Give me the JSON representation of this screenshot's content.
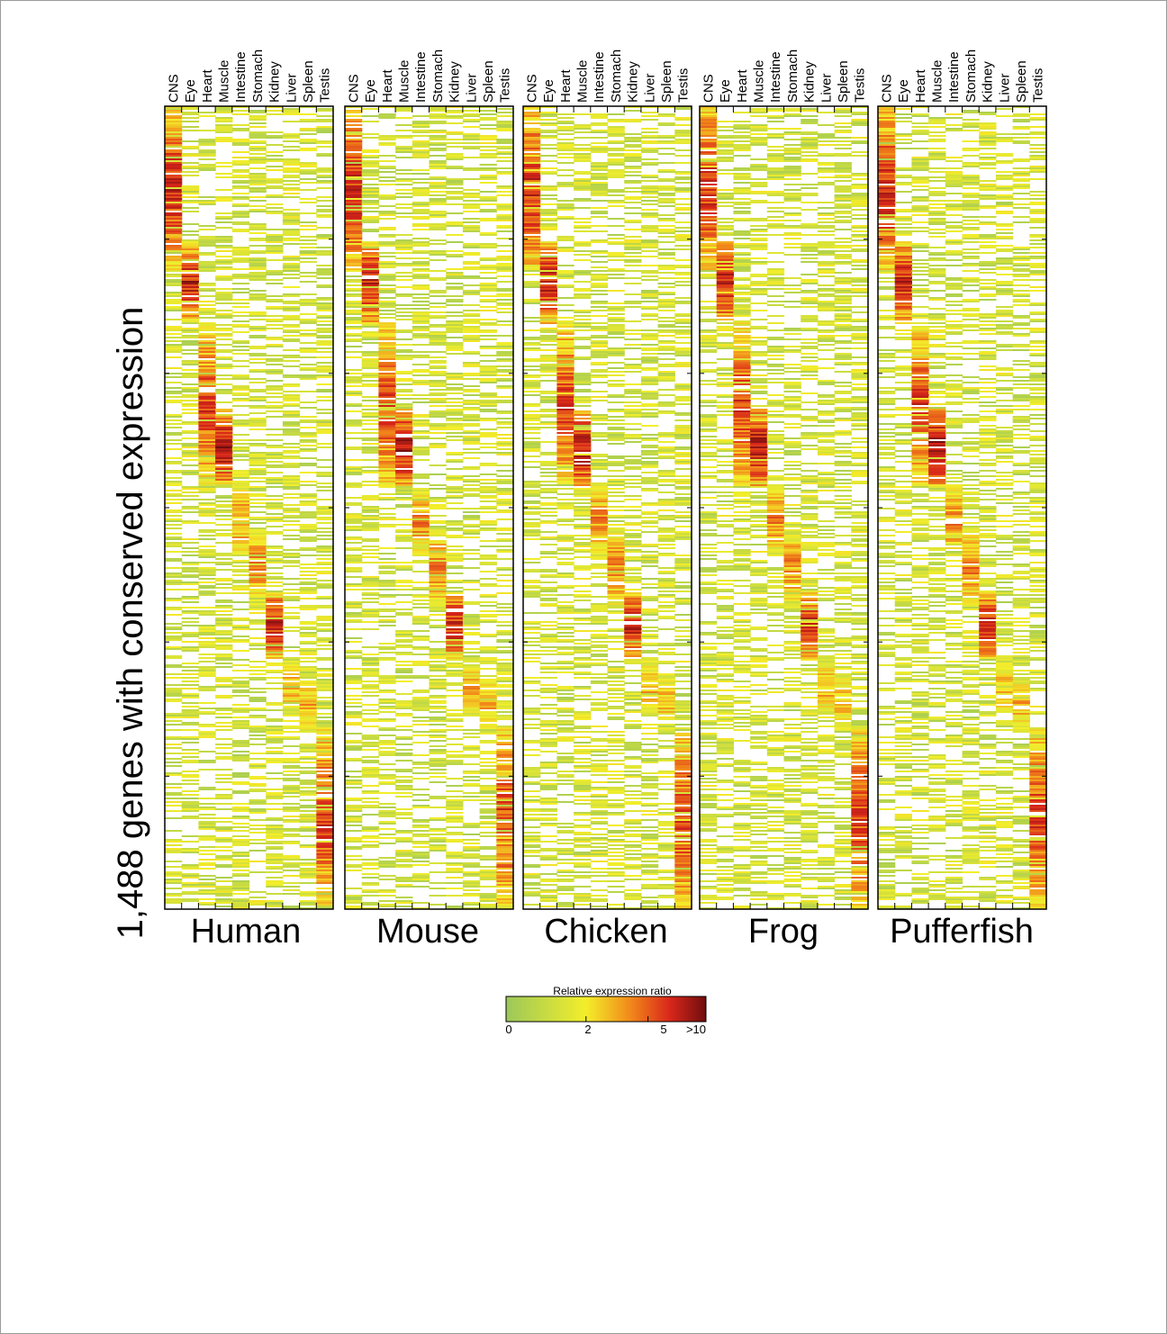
{
  "chart_data": {
    "type": "heatmap",
    "ylabel": "1,488 genes with conserved expression",
    "tissues": [
      "CNS",
      "Eye",
      "Heart",
      "Muscle",
      "Intestine",
      "Stomach",
      "Kidney",
      "Liver",
      "Spleen",
      "Testis"
    ],
    "species": [
      "Human",
      "Mouse",
      "Chicken",
      "Frog",
      "Pufferfish"
    ],
    "gene_count": 1488,
    "clusters": [
      {
        "tissue": "CNS",
        "rows": [
          0,
          300
        ],
        "peak": 8
      },
      {
        "tissue": "Eye",
        "rows": [
          250,
          400
        ],
        "peak": 9
      },
      {
        "tissue": "Heart",
        "rows": [
          400,
          700
        ],
        "peak": 7
      },
      {
        "tissue": "Muscle",
        "rows": [
          560,
          700
        ],
        "peak": 10
      },
      {
        "tissue": "Intestine",
        "rows": [
          700,
          830
        ],
        "peak": 5
      },
      {
        "tissue": "Stomach",
        "rows": [
          780,
          930
        ],
        "peak": 5
      },
      {
        "tissue": "Kidney",
        "rows": [
          900,
          1020
        ],
        "peak": 9
      },
      {
        "tissue": "Liver",
        "rows": [
          1020,
          1130
        ],
        "peak": 4
      },
      {
        "tissue": "Spleen",
        "rows": [
          1050,
          1160
        ],
        "peak": 4
      },
      {
        "tissue": "Testis",
        "rows": [
          1150,
          1488
        ],
        "peak": 7
      }
    ],
    "colorbar": {
      "title": "Relative expression ratio",
      "ticks": [
        "0",
        "2",
        "5",
        ">10"
      ],
      "tick_values": [
        0,
        2,
        5,
        10
      ],
      "colors": [
        "#9cc85a",
        "#f3ee2a",
        "#f28a1a",
        "#d8261a",
        "#6f0e0e"
      ]
    },
    "grid": false
  }
}
